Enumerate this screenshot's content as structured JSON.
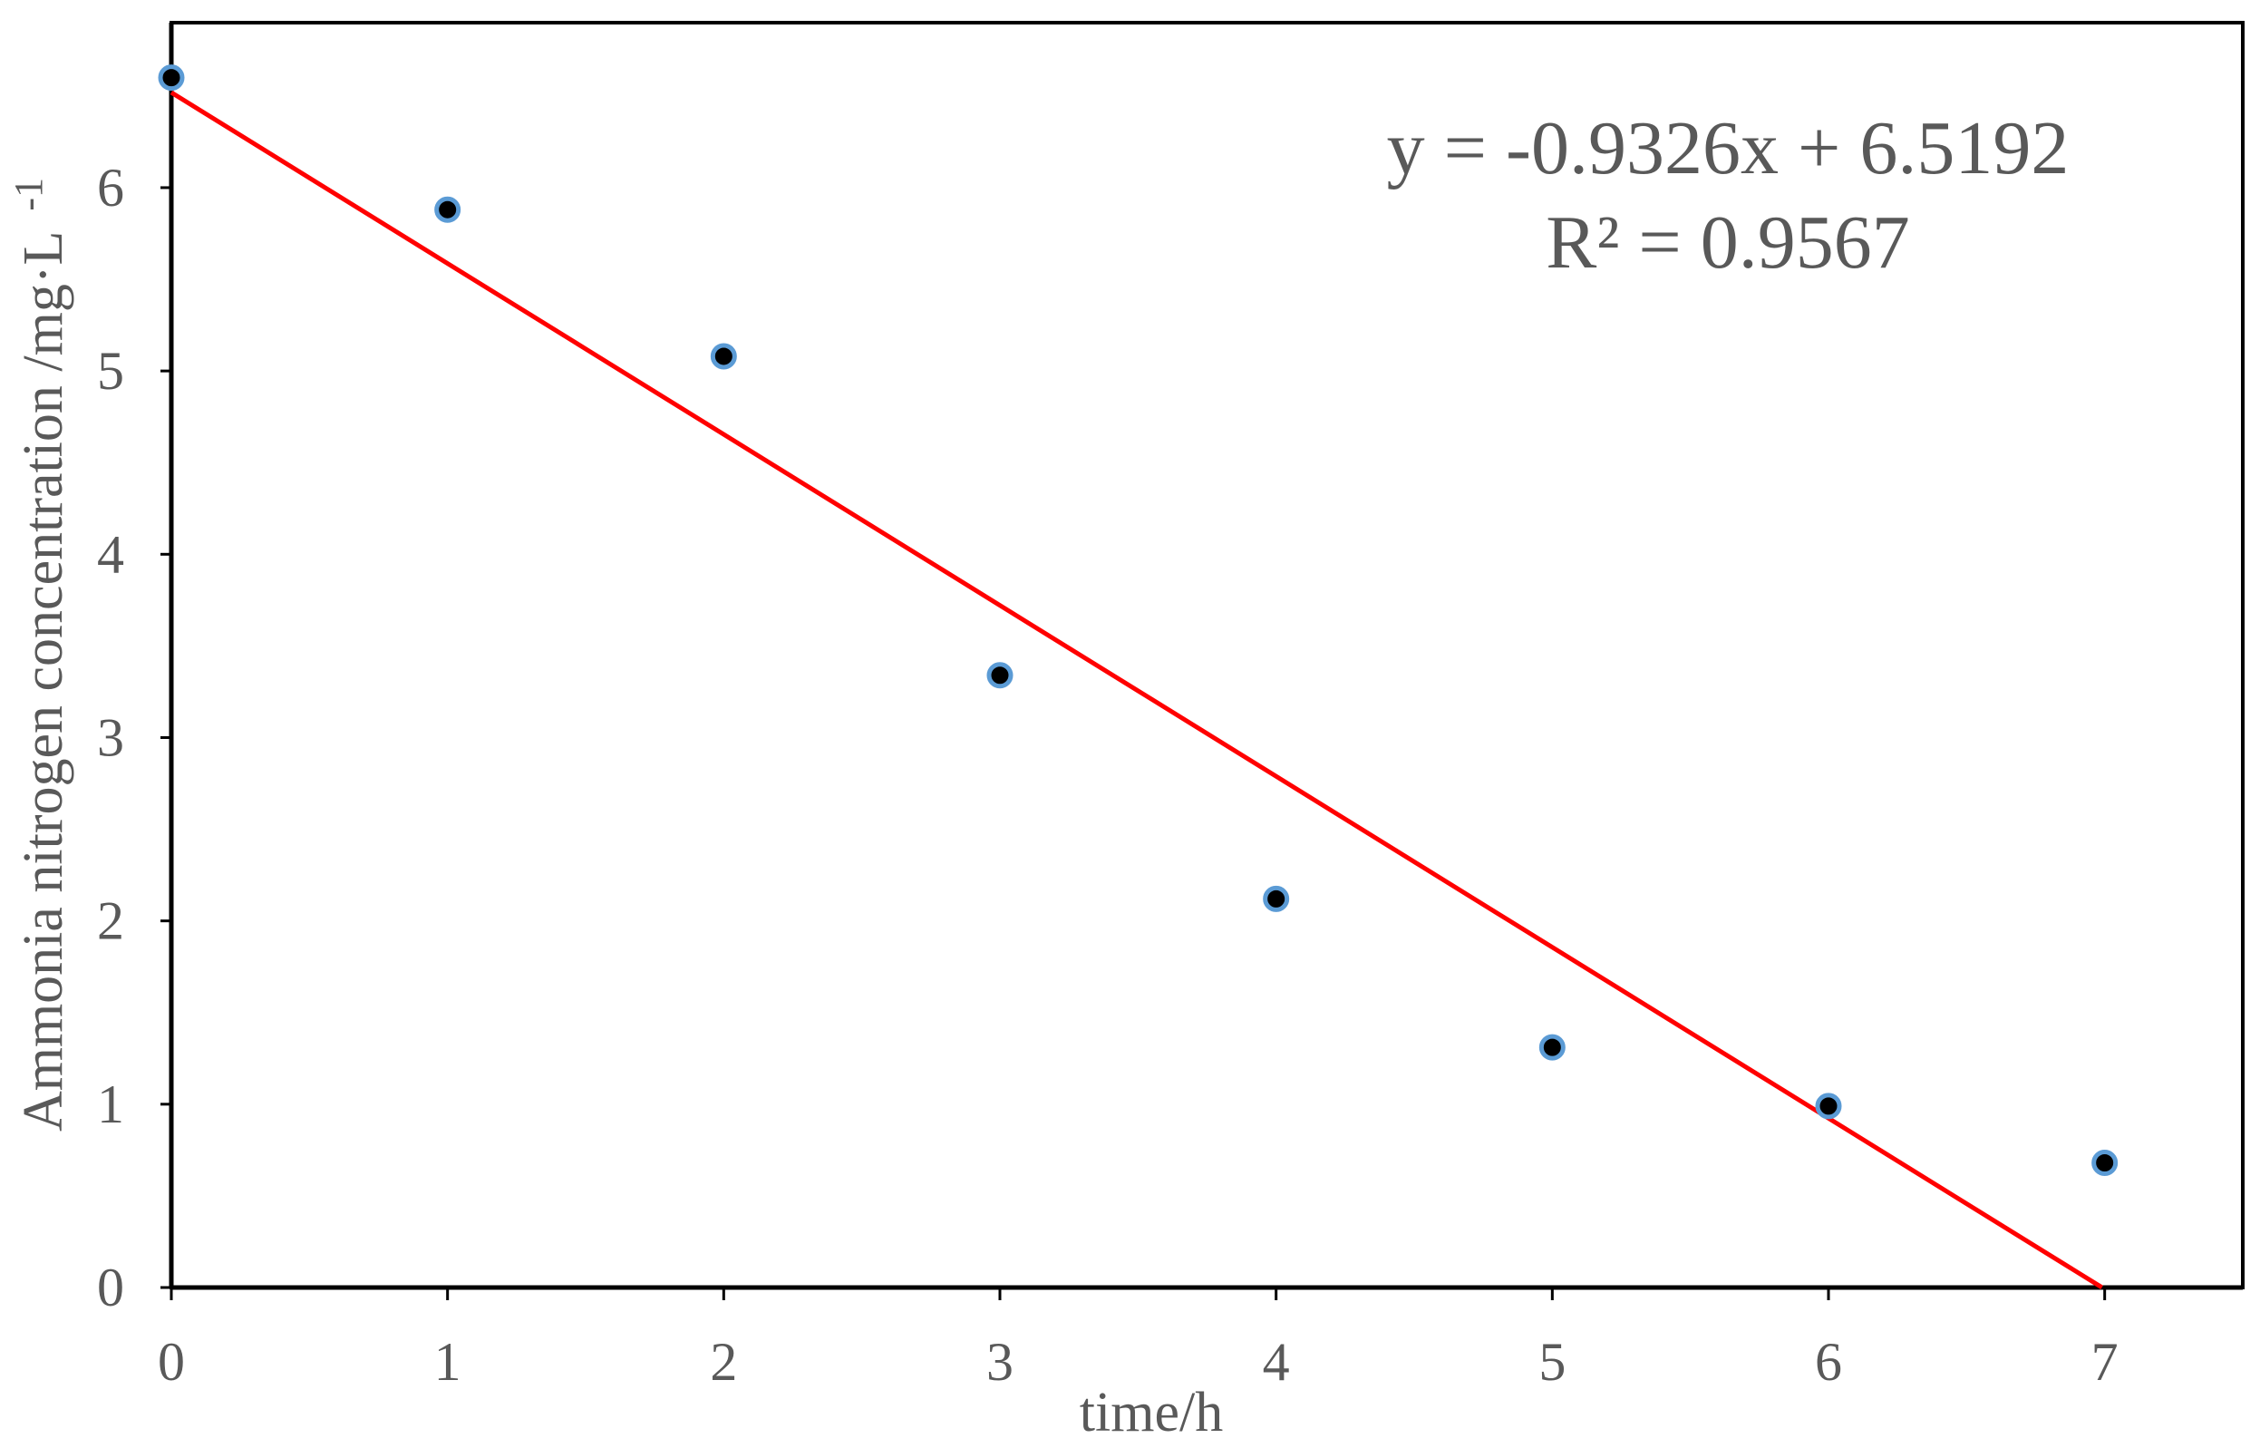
{
  "chart_data": {
    "type": "scatter",
    "title": "",
    "xlabel": "time/h",
    "ylabel": "Ammonia nitrogen concentration /mg·L",
    "ylabel_superscript": "-1",
    "xlim": [
      0,
      7.5
    ],
    "ylim": [
      0,
      6.9
    ],
    "x_ticks": [
      0,
      1,
      2,
      3,
      4,
      5,
      6,
      7
    ],
    "y_ticks": [
      0,
      1,
      2,
      3,
      4,
      5,
      6
    ],
    "grid": false,
    "legend": "none",
    "series": [
      {
        "x": [
          0,
          1,
          2,
          3,
          4,
          5,
          6,
          7
        ],
        "y": [
          6.6,
          5.88,
          5.08,
          3.34,
          2.12,
          1.31,
          0.99,
          0.68
        ],
        "marker_color": "#000000",
        "marker_edge_color": "#5b9bd5"
      }
    ],
    "trendline": {
      "type": "linear",
      "slope": -0.9326,
      "intercept": 6.5192,
      "color": "#ff0000",
      "x_range": [
        0,
        6.99
      ]
    },
    "annotations": {
      "equation": "y = -0.9326x + 6.5192",
      "r_squared": "R² = 0.9567"
    }
  }
}
